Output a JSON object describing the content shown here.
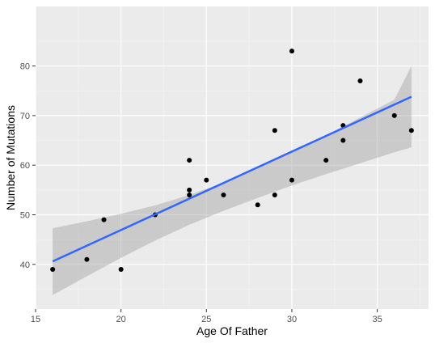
{
  "chart_data": {
    "type": "scatter",
    "title": "",
    "xlabel": "Age Of Father",
    "ylabel": "Number of Mutations",
    "xlim": [
      15,
      38
    ],
    "ylim": [
      31,
      92
    ],
    "x_ticks": [
      15,
      20,
      25,
      30,
      35
    ],
    "y_ticks": [
      40,
      50,
      60,
      70,
      80
    ],
    "grid": true,
    "points": [
      {
        "x": 16,
        "y": 39
      },
      {
        "x": 18,
        "y": 41
      },
      {
        "x": 19,
        "y": 49
      },
      {
        "x": 20,
        "y": 39
      },
      {
        "x": 22,
        "y": 50
      },
      {
        "x": 24,
        "y": 61
      },
      {
        "x": 24,
        "y": 55
      },
      {
        "x": 24,
        "y": 54
      },
      {
        "x": 25,
        "y": 57
      },
      {
        "x": 26,
        "y": 54
      },
      {
        "x": 28,
        "y": 52
      },
      {
        "x": 29,
        "y": 67
      },
      {
        "x": 29,
        "y": 54
      },
      {
        "x": 30,
        "y": 83
      },
      {
        "x": 30,
        "y": 57
      },
      {
        "x": 32,
        "y": 61
      },
      {
        "x": 33,
        "y": 68
      },
      {
        "x": 33,
        "y": 65
      },
      {
        "x": 34,
        "y": 77
      },
      {
        "x": 36,
        "y": 70
      },
      {
        "x": 37,
        "y": 67
      }
    ],
    "fit_line": {
      "x": [
        16,
        37
      ],
      "y": [
        40.6,
        73.8
      ]
    },
    "confidence_band": {
      "x": [
        16,
        18,
        20,
        22,
        24,
        26,
        28,
        30,
        32,
        34,
        36,
        37
      ],
      "lower": [
        33.8,
        37.6,
        41.3,
        44.8,
        48.0,
        50.8,
        53.4,
        55.9,
        58.2,
        60.4,
        62.6,
        63.6
      ],
      "upper": [
        47.3,
        48.7,
        50.2,
        51.9,
        54.0,
        56.5,
        59.4,
        62.6,
        66.0,
        69.6,
        73.2,
        80.0
      ]
    },
    "colors": {
      "panel_background": "#ebebeb",
      "grid_major": "#ffffff",
      "grid_minor": "#f5f5f5",
      "point": "#000000",
      "fit_line": "#3366ff",
      "band": "#999999"
    }
  }
}
